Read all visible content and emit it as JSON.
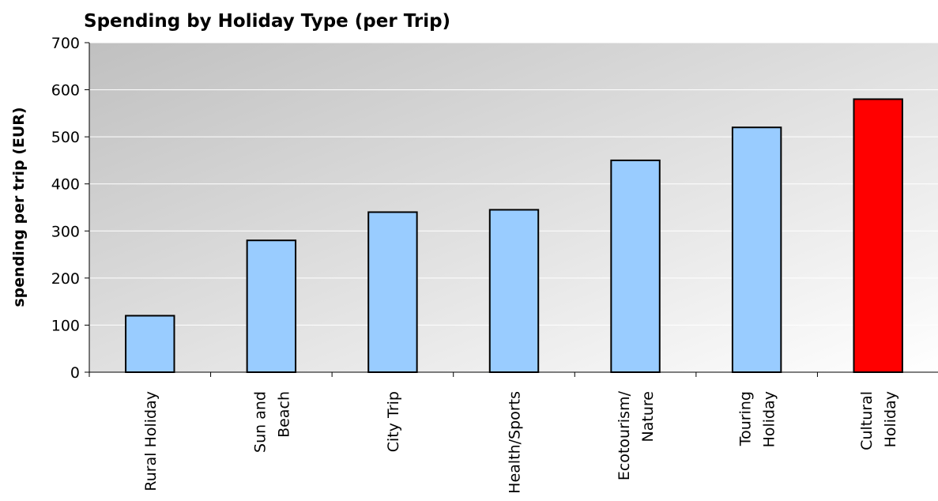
{
  "chart_data": {
    "type": "bar",
    "title": "Spending by Holiday Type (per Trip)",
    "ylabel": "spending per trip (EUR)",
    "xlabel": "",
    "ylim": [
      0,
      700
    ],
    "yticks": [
      0,
      100,
      200,
      300,
      400,
      500,
      600,
      700
    ],
    "grid": true,
    "categories": [
      [
        "Rural Holiday"
      ],
      [
        "Sun and",
        "Beach"
      ],
      [
        "City Trip"
      ],
      [
        "Health/Sports"
      ],
      [
        "Ecotourism/",
        "Nature"
      ],
      [
        "Touring",
        "Holiday"
      ],
      [
        "Cultural",
        "Holiday"
      ]
    ],
    "values": [
      120,
      280,
      340,
      345,
      450,
      520,
      580
    ],
    "colors": [
      "#99ccff",
      "#99ccff",
      "#99ccff",
      "#99ccff",
      "#99ccff",
      "#99ccff",
      "#ff0000"
    ],
    "highlight_index": 6
  }
}
